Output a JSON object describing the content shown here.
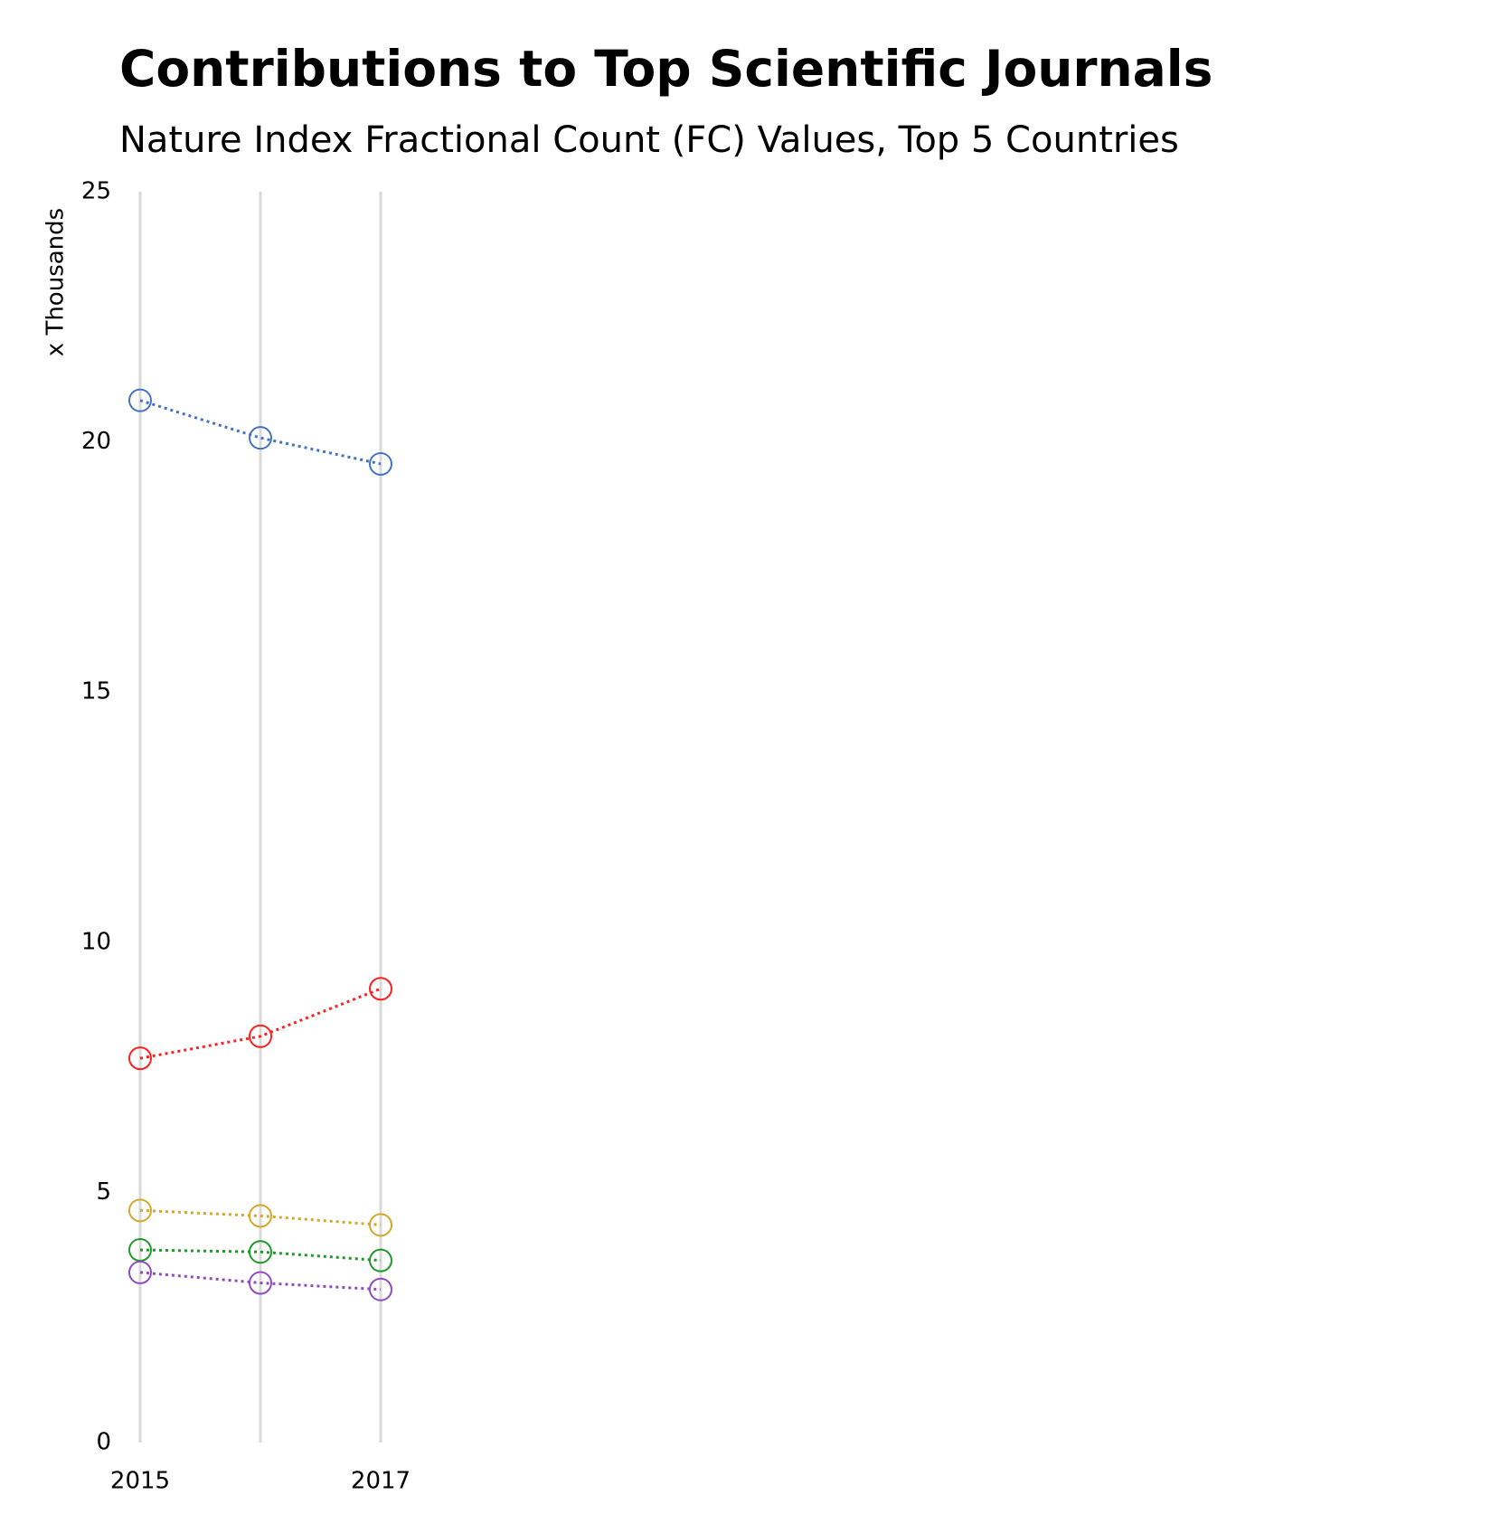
{
  "chart_data": {
    "type": "line",
    "title": "Contributions to Top Scientific Journals",
    "subtitle": "Nature Index Fractional Count (FC) Values, Top 5 Countries",
    "y_label": "x Thousands",
    "categories": [
      "2015",
      null,
      "2017"
    ],
    "series": [
      {
        "color": "#4472c4",
        "values": [
          20.83,
          20.08,
          19.56
        ]
      },
      {
        "color": "#ff2020",
        "values": [
          7.68,
          8.12,
          9.07
        ]
      },
      {
        "color": "#d4a82a",
        "values": [
          4.64,
          4.53,
          4.35
        ]
      },
      {
        "color": "#1f9a2a",
        "values": [
          3.85,
          3.81,
          3.64
        ]
      },
      {
        "color": "#8e4dbf",
        "values": [
          3.4,
          3.19,
          3.06
        ]
      }
    ],
    "ylim": [
      0,
      25
    ],
    "yticks": [
      0,
      5,
      10,
      15,
      20,
      25
    ],
    "grid": true
  }
}
